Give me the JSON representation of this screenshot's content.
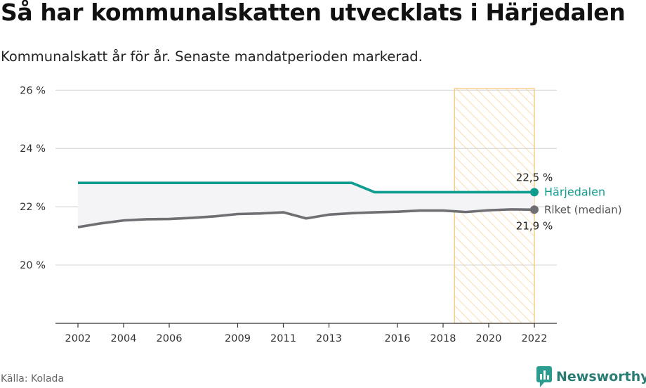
{
  "title": "Så har kommunalskatten utvecklats i Härjedalen",
  "subtitle": "Kommunalskatt år för år. Senaste mandatperioden markerad.",
  "source": "Källa: Kolada",
  "brand": {
    "name": "Newsworthy",
    "icon": "newsworthy-logo-icon"
  },
  "colors": {
    "harjedalen": "#0d9c8f",
    "riket": "#6e6e73",
    "highlight_border": "#f5c87a",
    "highlight_hatch": "#f7cc83",
    "grid": "#d9d9d9",
    "band": "#f4f4f6"
  },
  "chart_data": {
    "type": "line",
    "title": "Så har kommunalskatten utvecklats i Härjedalen",
    "subtitle": "Kommunalskatt år för år. Senaste mandatperioden markerad.",
    "x": [
      2002,
      2003,
      2004,
      2005,
      2006,
      2007,
      2008,
      2009,
      2010,
      2011,
      2012,
      2013,
      2014,
      2015,
      2016,
      2017,
      2018,
      2019,
      2020,
      2021,
      2022
    ],
    "series": [
      {
        "name": "Härjedalen",
        "values": [
          22.82,
          22.82,
          22.82,
          22.82,
          22.82,
          22.82,
          22.82,
          22.82,
          22.82,
          22.82,
          22.82,
          22.82,
          22.82,
          22.5,
          22.5,
          22.5,
          22.5,
          22.5,
          22.5,
          22.5,
          22.5
        ],
        "end_label": "22,5 %"
      },
      {
        "name": "Riket (median)",
        "values": [
          21.3,
          21.43,
          21.53,
          21.57,
          21.58,
          21.62,
          21.67,
          21.75,
          21.77,
          21.81,
          21.6,
          21.73,
          21.78,
          21.81,
          21.83,
          21.87,
          21.87,
          21.82,
          21.88,
          21.91,
          21.9
        ],
        "end_label": "21,9 %"
      }
    ],
    "ylim": [
      18.0,
      26.2
    ],
    "yticks": [
      20,
      22,
      24,
      26
    ],
    "ytick_labels": [
      "20 %",
      "22 %",
      "24 %",
      "26 %"
    ],
    "xticks": [
      2002,
      2004,
      2006,
      2009,
      2011,
      2013,
      2016,
      2018,
      2020,
      2022
    ],
    "xtick_labels": [
      "2002",
      "2004",
      "2006",
      "2009",
      "2011",
      "2013",
      "2016",
      "2018",
      "2020",
      "2022"
    ],
    "highlight_period": [
      2018.5,
      2022
    ],
    "grid": true,
    "legend": "inline-right"
  }
}
